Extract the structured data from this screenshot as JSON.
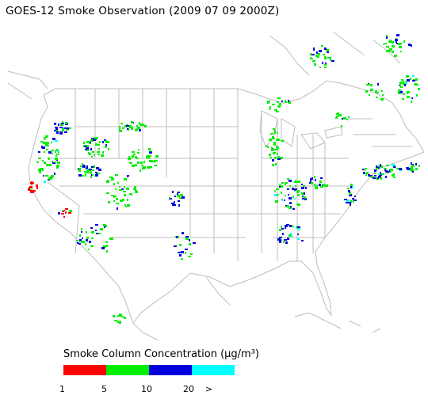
{
  "title": "GOES-12 Smoke Observation (2009 07 09  2000Z)",
  "legend": {
    "title": "Smoke Column Concentration (μg/m³)",
    "bins": [
      {
        "label": "1",
        "color": "#ff0000"
      },
      {
        "label": "5",
        "color": "#00ee00"
      },
      {
        "label": "10",
        "color": "#0000dd"
      },
      {
        "label": "20",
        "color": "#00ffff"
      }
    ],
    "last_tick": ">"
  },
  "colors": {
    "background": "#ffffff",
    "boundaries": "#bdbdbd",
    "text": "#000000"
  }
}
